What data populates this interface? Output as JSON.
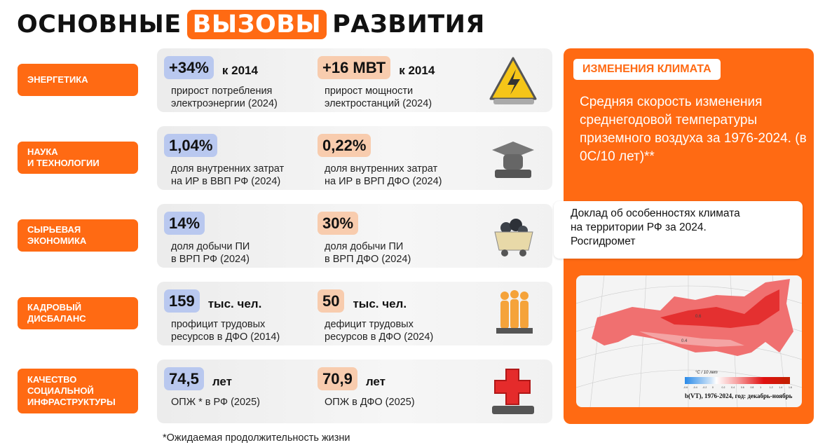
{
  "title": {
    "part1": "ОСНОВНЫЕ",
    "highlight": "ВЫЗОВЫ",
    "part2": "РАЗВИТИЯ"
  },
  "rows": [
    {
      "category": "ЭНЕРГЕТИКА",
      "icon": "warning-lightning-icon",
      "stats": [
        {
          "value": "+34%",
          "unit": "к 2014",
          "desc1": "прирост потребления",
          "desc2": "электроэнергии (2024)"
        },
        {
          "value": "+16 МВТ",
          "unit": "к 2014",
          "desc1": "прирост мощности",
          "desc2": "электростанций (2024)"
        }
      ]
    },
    {
      "category": "НАУКА\nИ ТЕХНОЛОГИИ",
      "icon": "graduation-cap-icon",
      "stats": [
        {
          "value": "1,04%",
          "unit": "",
          "desc1": "доля внутренних затрат",
          "desc2": "на ИР в ВВП РФ (2024)"
        },
        {
          "value": "0,22%",
          "unit": "",
          "desc1": "доля внутренних затрат",
          "desc2": "на ИР в ВРП ДФО (2024)"
        }
      ]
    },
    {
      "category": "СЫРЬЕВАЯ\nЭКОНОМИКА",
      "icon": "coal-cart-icon",
      "stats": [
        {
          "value": "14%",
          "unit": "",
          "desc1": "доля добычи ПИ",
          "desc2": "в ВРП РФ (2024)"
        },
        {
          "value": "30%",
          "unit": "",
          "desc1": "доля добычи ПИ",
          "desc2": "в ВРП ДФО (2024)"
        }
      ]
    },
    {
      "category": "КАДРОВЫЙ\nДИСБАЛАНС",
      "icon": "people-icon",
      "stats": [
        {
          "value": "159",
          "unit": "тыс. чел.",
          "desc1": "профицит трудовых",
          "desc2": "ресурсов в ДФО (2014)"
        },
        {
          "value": "50",
          "unit": "тыс. чел.",
          "desc1": "дефицит трудовых",
          "desc2": "ресурсов в ДФО (2024)"
        }
      ]
    },
    {
      "category": "КАЧЕСТВО\nСОЦИАЛЬНОЙ\nИНФРАСТРУКТУРЫ",
      "icon": "medical-cross-icon",
      "stats": [
        {
          "value": "74,5",
          "unit": "лет",
          "desc1": "ОПЖ * в РФ (2025)",
          "desc2": ""
        },
        {
          "value": "70,9",
          "unit": "лет",
          "desc1": "ОПЖ в ДФО (2025)",
          "desc2": ""
        }
      ]
    }
  ],
  "climate": {
    "badge": "ИЗМЕНЕНИЯ КЛИМАТА",
    "text": "Средняя скорость изменения среднегодовой температуры приземного воздуха за 1976-2024. (в 0С/10 лет)**",
    "source": [
      "Доклад об особенностях климата",
      "на территории РФ за 2024.",
      "Росгидромет"
    ],
    "map": {
      "legend_title": "°C / 10 лет",
      "legend_ticks": [
        "-0.6",
        "-0.4",
        "-0.2",
        "0",
        "0.2",
        "0.4",
        "0.6",
        "0.8",
        "1",
        "1.2",
        "1.4",
        "1.6"
      ],
      "caption": "b(VT), 1976-2024, год: декабрь-ноябрь",
      "contour_labels": [
        "0.6",
        "0.4"
      ]
    }
  },
  "footnote": "*Ожидаемая продолжительность жизни",
  "colors": {
    "accent": "#ff6a13",
    "blue_badge": "#b9c8ef",
    "peach_badge": "#f8ccae"
  }
}
